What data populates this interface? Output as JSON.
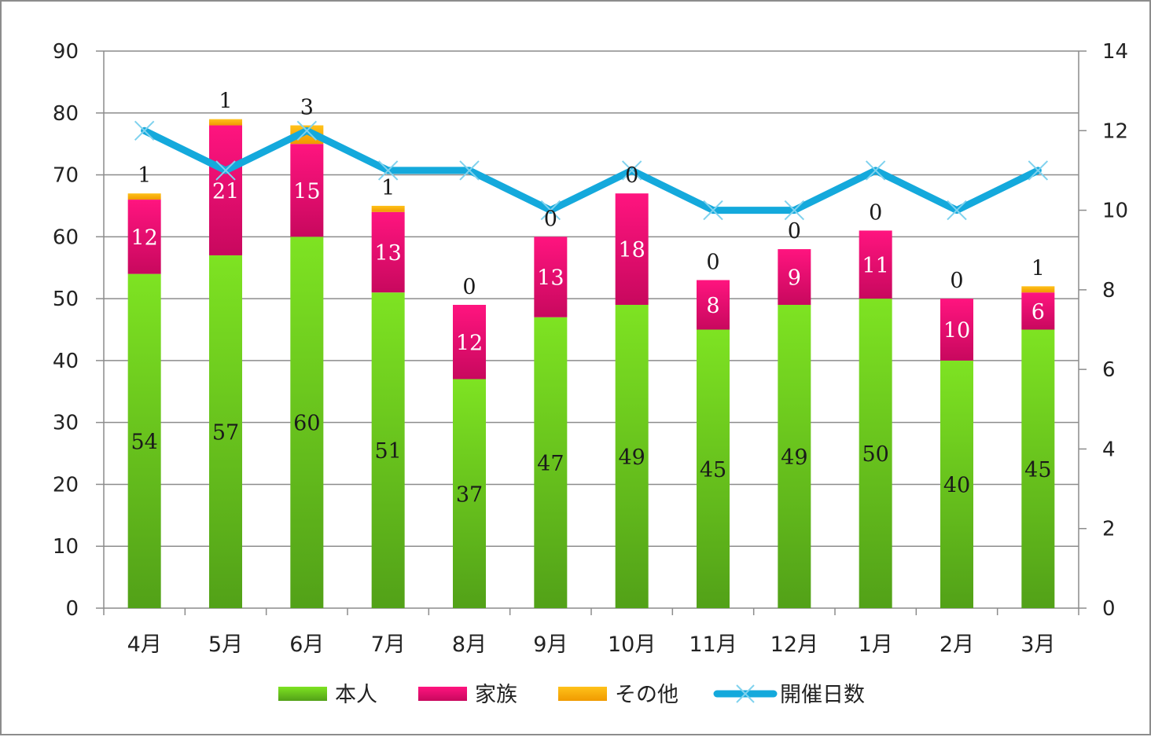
{
  "chart_data": {
    "type": "bar",
    "stacked": true,
    "categories": [
      "4月",
      "5月",
      "6月",
      "7月",
      "8月",
      "9月",
      "10月",
      "11月",
      "12月",
      "1月",
      "2月",
      "3月"
    ],
    "series": [
      {
        "name": "本人",
        "type": "bar",
        "axis": "left",
        "color": "#6cd41c",
        "values": [
          54,
          57,
          60,
          51,
          37,
          47,
          49,
          45,
          49,
          50,
          40,
          45
        ]
      },
      {
        "name": "家族",
        "type": "bar",
        "axis": "left",
        "color": "#f2137a",
        "values": [
          12,
          21,
          15,
          13,
          12,
          13,
          18,
          8,
          9,
          11,
          10,
          6
        ]
      },
      {
        "name": "その他",
        "type": "bar",
        "axis": "left",
        "color": "#f5b000",
        "values": [
          1,
          1,
          3,
          1,
          0,
          0,
          0,
          0,
          0,
          0,
          0,
          1
        ]
      },
      {
        "name": "開催日数",
        "type": "line",
        "axis": "right",
        "color": "#14a9dc",
        "values": [
          12,
          11,
          12,
          11,
          11,
          10,
          11,
          10,
          10,
          11,
          10,
          11
        ]
      }
    ],
    "y_left": {
      "min": 0,
      "max": 90,
      "ticks": [
        "0",
        "10",
        "20",
        "30",
        "40",
        "50",
        "60",
        "70",
        "80",
        "90"
      ]
    },
    "y_right": {
      "min": 0,
      "max": 14,
      "ticks": [
        "0",
        "2",
        "4",
        "6",
        "8",
        "10",
        "12",
        "14"
      ]
    },
    "grid": true,
    "legend_position": "bottom"
  }
}
